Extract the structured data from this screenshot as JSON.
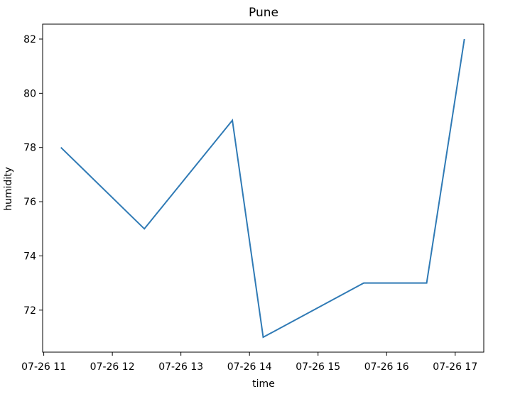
{
  "chart_data": {
    "type": "line",
    "title": "Pune",
    "xlabel": "time",
    "ylabel": "humidity",
    "x_tick_labels": [
      "07-26 11",
      "07-26 12",
      "07-26 13",
      "07-26 14",
      "07-26 15",
      "07-26 16",
      "07-26 17"
    ],
    "x_tick_hours": [
      11,
      12,
      13,
      14,
      15,
      16,
      17
    ],
    "y_ticks": [
      72,
      74,
      76,
      78,
      80,
      82
    ],
    "xlim": [
      "07-26 10:59",
      "07-26 17:25"
    ],
    "ylim": [
      70.45,
      82.55
    ],
    "grid": false,
    "series": [
      {
        "color": "#2f7ab5",
        "x": [
          "07-26 11:15",
          "07-26 12:28",
          "07-26 13:45",
          "07-26 14:12",
          "07-26 15:40",
          "07-26 16:35",
          "07-26 17:08"
        ],
        "values": [
          78,
          75,
          79,
          71,
          73,
          73,
          82
        ]
      }
    ]
  }
}
